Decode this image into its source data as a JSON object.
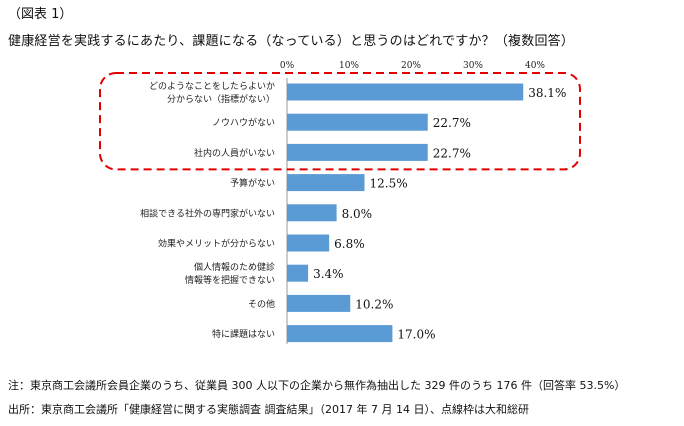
{
  "header": {
    "figure_label": "（図表 1）",
    "question": "健康経営を実践するにあたり、課題になる（なっている）と思うのはどれですか？（複数回答）"
  },
  "chart_data": {
    "type": "bar",
    "orientation": "horizontal",
    "categories": [
      [
        "どのようなことをしたらよいか",
        "分からない（指標がない）"
      ],
      [
        "ノウハウがない"
      ],
      [
        "社内の人員がいない"
      ],
      [
        "予算がない"
      ],
      [
        "相談できる社外の専門家がいない"
      ],
      [
        "効果やメリットが分からない"
      ],
      [
        "個人情報のため健診",
        "情報等を把握できない"
      ],
      [
        "その他"
      ],
      [
        "特に課題はない"
      ]
    ],
    "values": [
      38.1,
      22.7,
      22.7,
      12.5,
      8.0,
      6.8,
      3.4,
      10.2,
      17.0
    ],
    "value_labels": [
      "38.1%",
      "22.7%",
      "22.7%",
      "12.5%",
      "8.0%",
      "6.8%",
      "3.4%",
      "10.2%",
      "17.0%"
    ],
    "x_ticks": [
      "0%",
      "10%",
      "20%",
      "30%",
      "40%"
    ],
    "xlim": [
      0,
      40
    ],
    "grid": false,
    "bar_color": "#5b9bd5",
    "highlight": {
      "style": "dashed rounded box",
      "color": "#e00000",
      "covers_categories": [
        0,
        1,
        2
      ]
    }
  },
  "notes": {
    "line1": "注：東京商工会議所会員企業のうち、従業員 300 人以下の企業から無作為抽出した 329 件のうち 176 件（回答率 53.5%）",
    "line2": "出所：東京商工会議所「健康経営に関する実態調査 調査結果」（2017 年 7 月 14 日）、点線枠は大和総研"
  }
}
